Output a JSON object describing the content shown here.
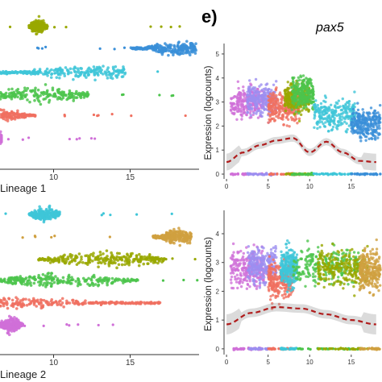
{
  "panel_label": "e)",
  "gene_label": "pax5",
  "chart_data": [
    {
      "type": "scatter",
      "panel": "left-top",
      "xlabel": "Lineage 1",
      "x_ticks": [
        10,
        15
      ],
      "xlim": [
        6.5,
        19.5
      ],
      "series": [
        {
          "color": "#99a800",
          "x_range": [
            8.4,
            9.6
          ],
          "peak": 9.0
        },
        {
          "color": "#3a8fd8",
          "x_range": [
            15.0,
            19.3
          ],
          "peak": 18.2
        },
        {
          "color": "#3ec6d8",
          "x_range": [
            5.8,
            14.8
          ],
          "peak": 12.6
        },
        {
          "color": "#4cc44c",
          "x_range": [
            5.0,
            12.3
          ],
          "peak": 9.0
        },
        {
          "color": "#f07060",
          "x_range": [
            4.0,
            8.8
          ],
          "peak": 6.0
        },
        {
          "color": "#d070d8",
          "x_range": [
            6.0,
            6.6
          ],
          "peak": 6.3
        }
      ]
    },
    {
      "type": "scatter",
      "panel": "left-bottom",
      "xlabel": "Lineage 2",
      "x_ticks": [
        10,
        15
      ],
      "xlim": [
        6.5,
        19.5
      ],
      "series": [
        {
          "color": "#3ec6d8",
          "x_range": [
            8.4,
            10.4
          ],
          "peak": 9.5
        },
        {
          "color": "#d0a040",
          "x_range": [
            16.5,
            19.0
          ],
          "peak": 18.2
        },
        {
          "color": "#99a800",
          "x_range": [
            9.0,
            17.3
          ],
          "peak": 13.5
        },
        {
          "color": "#4cc44c",
          "x_range": [
            6.0,
            15.5
          ],
          "peak": 10.5
        },
        {
          "color": "#f07060",
          "x_range": [
            5.0,
            17.0
          ],
          "peak": 6.3
        },
        {
          "color": "#d070d8",
          "x_range": [
            6.5,
            8.0
          ],
          "peak": 7.2
        }
      ]
    },
    {
      "type": "scatter",
      "panel": "right-top",
      "ylabel": "Expression (logcounts)",
      "x_ticks": [
        0,
        5,
        10,
        15
      ],
      "y_ticks": [
        0,
        1,
        2,
        3,
        4,
        5
      ],
      "xlim": [
        -0.3,
        18.7
      ],
      "ylim": [
        -0.2,
        5.3
      ],
      "clusters": [
        {
          "color": "#d070d8",
          "x": [
            0.5,
            4.5
          ],
          "y_mean": 3.0
        },
        {
          "color": "#9c8ff0",
          "x": [
            2.5,
            6.0
          ],
          "y_mean": 3.1
        },
        {
          "color": "#f07060",
          "x": [
            5.0,
            8.8
          ],
          "y_mean": 2.8
        },
        {
          "color": "#99a800",
          "x": [
            7.0,
            10.0
          ],
          "y_mean": 3.2
        },
        {
          "color": "#4cc44c",
          "x": [
            7.8,
            10.5
          ],
          "y_mean": 3.4
        },
        {
          "color": "#3ec6d8",
          "x": [
            10.5,
            15.5
          ],
          "y_mean": 2.5
        },
        {
          "color": "#3a8fd8",
          "x": [
            15.0,
            18.5
          ],
          "y_mean": 2.1
        }
      ],
      "trend": {
        "x": [
          0,
          2,
          4,
          6,
          8,
          10,
          12,
          14,
          16,
          18
        ],
        "y": [
          0.5,
          0.9,
          1.2,
          1.4,
          1.5,
          0.9,
          1.35,
          0.9,
          0.55,
          0.5
        ]
      }
    },
    {
      "type": "scatter",
      "panel": "right-bottom",
      "ylabel": "Expression (logcounts)",
      "x_ticks": [
        0,
        5,
        10,
        15
      ],
      "y_ticks": [
        0,
        1,
        2,
        3,
        4
      ],
      "xlim": [
        -0.3,
        18.7
      ],
      "ylim": [
        -0.2,
        4.7
      ],
      "clusters": [
        {
          "color": "#d070d8",
          "x": [
            0.5,
            4.5
          ],
          "y_mean": 2.8
        },
        {
          "color": "#9c8ff0",
          "x": [
            2.5,
            6.0
          ],
          "y_mean": 2.9
        },
        {
          "color": "#f07060",
          "x": [
            5.0,
            8.0
          ],
          "y_mean": 2.4
        },
        {
          "color": "#3ec6d8",
          "x": [
            6.5,
            8.5
          ],
          "y_mean": 2.8
        },
        {
          "color": "#4cc44c",
          "x": [
            8.0,
            16.0
          ],
          "y_mean": 2.9
        },
        {
          "color": "#99a800",
          "x": [
            11.0,
            17.0
          ],
          "y_mean": 2.8
        },
        {
          "color": "#d0a040",
          "x": [
            16.0,
            18.5
          ],
          "y_mean": 2.7
        }
      ],
      "trend": {
        "x": [
          0,
          3,
          6,
          9,
          12,
          15,
          18
        ],
        "y": [
          0.85,
          1.25,
          1.45,
          1.4,
          1.2,
          1.0,
          0.85
        ]
      }
    }
  ]
}
